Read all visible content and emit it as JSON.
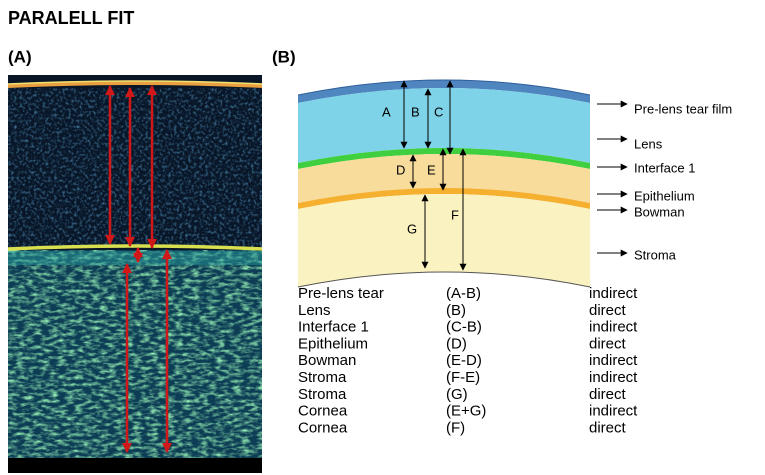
{
  "title": "PARALELL FIT",
  "panels": [
    {
      "label": "(A)"
    },
    {
      "label": "(B)"
    }
  ],
  "diagram": {
    "segments": [
      "A",
      "B",
      "C",
      "D",
      "E",
      "F",
      "G"
    ],
    "layers": [
      "Pre-lens tear film",
      "Lens",
      "Interface 1",
      "Epithelium",
      "Bowman",
      "Stroma"
    ]
  },
  "table": {
    "rows": [
      [
        "Pre-lens tear",
        "(A-B)",
        "indirect"
      ],
      [
        "Lens",
        "(B)",
        "direct"
      ],
      [
        "Interface 1",
        "(C-B)",
        "indirect"
      ],
      [
        "Epithelium",
        "(D)",
        "direct"
      ],
      [
        "Bowman",
        "(E-D)",
        "indirect"
      ],
      [
        "Stroma",
        "(F-E)",
        "indirect"
      ],
      [
        "Stroma",
        "(G)",
        "direct"
      ],
      [
        "Cornea",
        "(E+G)",
        "indirect"
      ],
      [
        "Cornea",
        "(F)",
        "direct"
      ]
    ]
  }
}
